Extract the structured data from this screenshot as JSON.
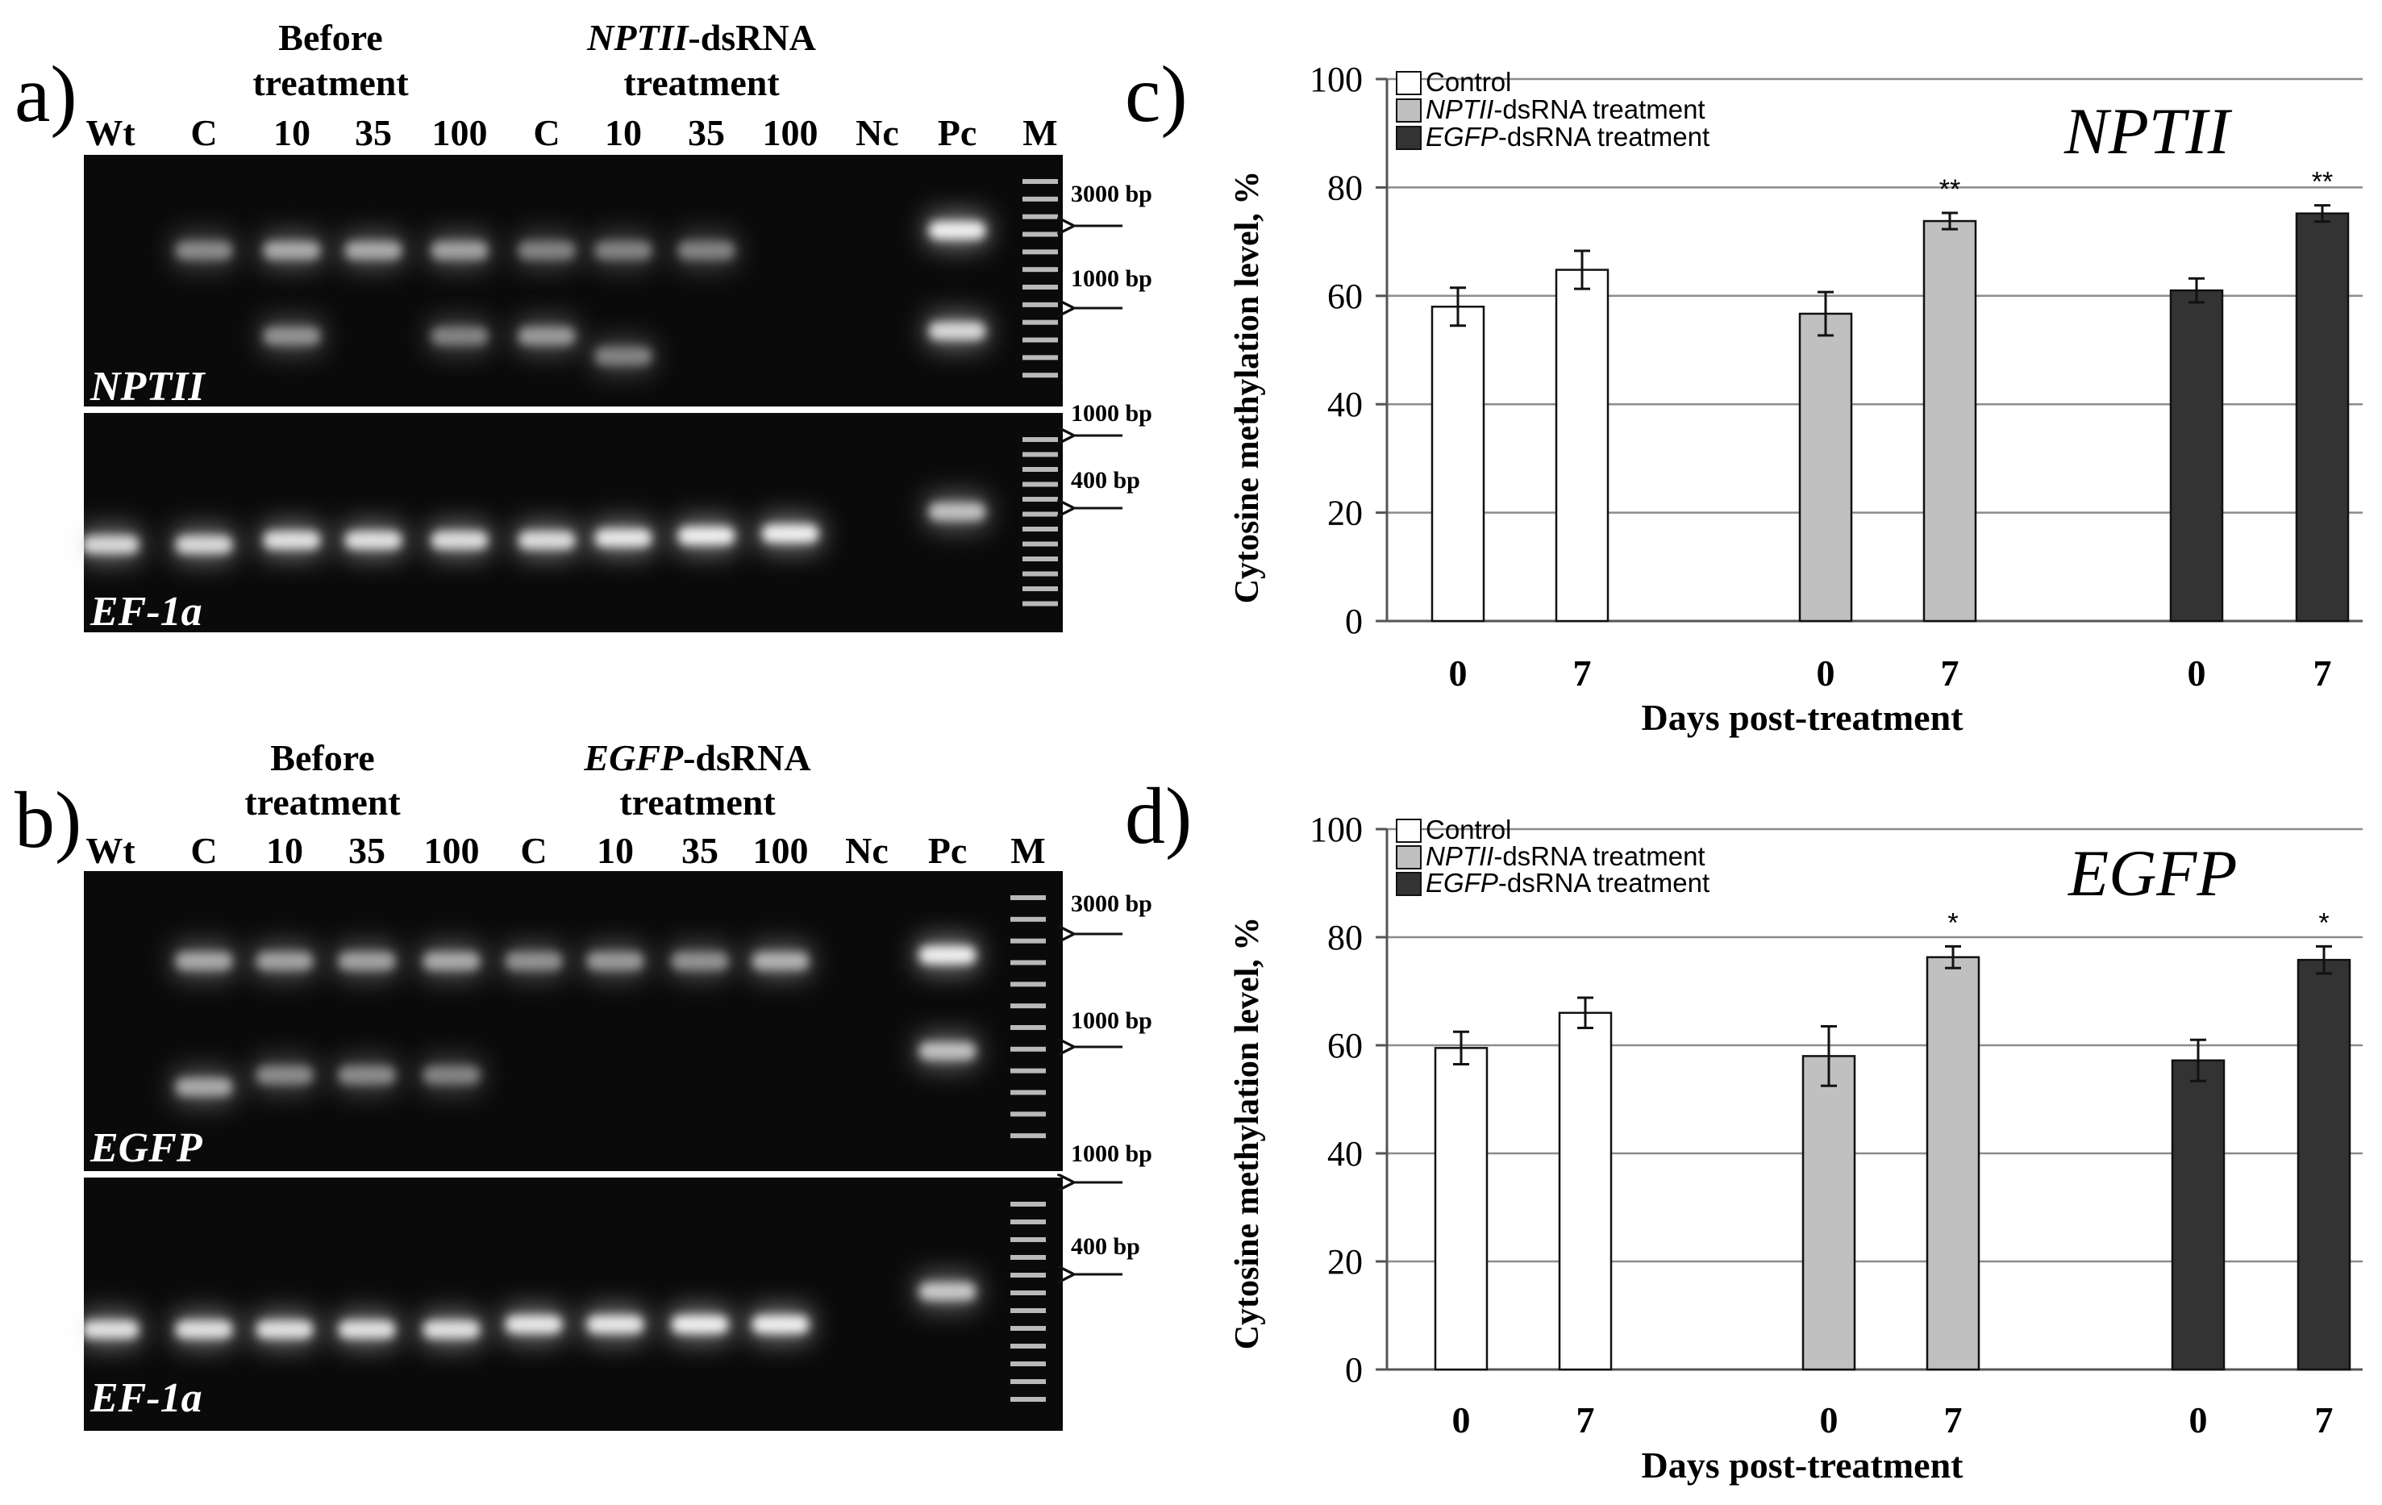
{
  "colors": {
    "gel_background": "#0a0a0a",
    "bar_control": "#ffffff",
    "bar_nptii": "#c0c0c0",
    "bar_egfp": "#333333",
    "gridline": "#8c8c8c"
  },
  "gels": [
    {
      "id": "a",
      "panel_label": "a)",
      "group1_title": [
        "Before",
        "treatment"
      ],
      "group2_title_italic": "NPTII",
      "group2_title_rest": "-dsRNA",
      "group2_title_line2": "treatment",
      "lane_labels": [
        "Wt",
        "C",
        "10",
        "35",
        "100",
        "C",
        "10",
        "35",
        "100",
        "Nc",
        "Pc",
        "M"
      ],
      "top_gel_label": "NPTII",
      "bottom_gel_label": "EF-1a",
      "marker_labels": [
        "3000 bp",
        "1000 bp",
        "1000 bp",
        "400 bp"
      ],
      "top_bands": [
        {
          "lane": 1,
          "pos": 0.38,
          "intensity": 0.35
        },
        {
          "lane": 2,
          "pos": 0.38,
          "intensity": 0.55
        },
        {
          "lane": 2,
          "pos": 0.72,
          "intensity": 0.4
        },
        {
          "lane": 3,
          "pos": 0.38,
          "intensity": 0.55
        },
        {
          "lane": 4,
          "pos": 0.38,
          "intensity": 0.5
        },
        {
          "lane": 4,
          "pos": 0.72,
          "intensity": 0.3
        },
        {
          "lane": 5,
          "pos": 0.38,
          "intensity": 0.3
        },
        {
          "lane": 5,
          "pos": 0.72,
          "intensity": 0.45
        },
        {
          "lane": 6,
          "pos": 0.38,
          "intensity": 0.3
        },
        {
          "lane": 6,
          "pos": 0.8,
          "intensity": 0.3
        },
        {
          "lane": 7,
          "pos": 0.38,
          "intensity": 0.3
        },
        {
          "lane": 10,
          "pos": 0.3,
          "intensity": 1.0
        },
        {
          "lane": 10,
          "pos": 0.7,
          "intensity": 0.85
        }
      ],
      "bottom_bands": [
        {
          "lane": 0,
          "pos": 0.6,
          "intensity": 0.85
        },
        {
          "lane": 1,
          "pos": 0.6,
          "intensity": 0.85
        },
        {
          "lane": 2,
          "pos": 0.58,
          "intensity": 0.9
        },
        {
          "lane": 3,
          "pos": 0.58,
          "intensity": 0.9
        },
        {
          "lane": 4,
          "pos": 0.58,
          "intensity": 0.88
        },
        {
          "lane": 5,
          "pos": 0.58,
          "intensity": 0.88
        },
        {
          "lane": 6,
          "pos": 0.57,
          "intensity": 0.95
        },
        {
          "lane": 7,
          "pos": 0.56,
          "intensity": 1.0
        },
        {
          "lane": 8,
          "pos": 0.55,
          "intensity": 1.0
        },
        {
          "lane": 10,
          "pos": 0.45,
          "intensity": 0.7
        }
      ]
    },
    {
      "id": "b",
      "panel_label": "b)",
      "group1_title": [
        "Before",
        "treatment"
      ],
      "group2_title_italic": "EGFP",
      "group2_title_rest": "-dsRNA",
      "group2_title_line2": "treatment",
      "lane_labels": [
        "Wt",
        "C",
        "10",
        "35",
        "100",
        "C",
        "10",
        "35",
        "100",
        "Nc",
        "Pc",
        "M"
      ],
      "top_gel_label": "EGFP",
      "bottom_gel_label": "EF-1a",
      "marker_labels": [
        "3000 bp",
        "1000 bp",
        "1000 bp",
        "400 bp"
      ],
      "top_bands": [
        {
          "lane": 1,
          "pos": 0.3,
          "intensity": 0.55
        },
        {
          "lane": 1,
          "pos": 0.72,
          "intensity": 0.55
        },
        {
          "lane": 2,
          "pos": 0.3,
          "intensity": 0.5
        },
        {
          "lane": 2,
          "pos": 0.68,
          "intensity": 0.35
        },
        {
          "lane": 3,
          "pos": 0.3,
          "intensity": 0.5
        },
        {
          "lane": 3,
          "pos": 0.68,
          "intensity": 0.35
        },
        {
          "lane": 4,
          "pos": 0.3,
          "intensity": 0.55
        },
        {
          "lane": 4,
          "pos": 0.68,
          "intensity": 0.3
        },
        {
          "lane": 5,
          "pos": 0.3,
          "intensity": 0.4
        },
        {
          "lane": 6,
          "pos": 0.3,
          "intensity": 0.45
        },
        {
          "lane": 7,
          "pos": 0.3,
          "intensity": 0.4
        },
        {
          "lane": 8,
          "pos": 0.3,
          "intensity": 0.6
        },
        {
          "lane": 10,
          "pos": 0.28,
          "intensity": 1.0
        },
        {
          "lane": 10,
          "pos": 0.6,
          "intensity": 0.7
        }
      ],
      "bottom_bands": [
        {
          "lane": 0,
          "pos": 0.6,
          "intensity": 0.9
        },
        {
          "lane": 1,
          "pos": 0.6,
          "intensity": 0.9
        },
        {
          "lane": 2,
          "pos": 0.6,
          "intensity": 0.9
        },
        {
          "lane": 3,
          "pos": 0.6,
          "intensity": 0.9
        },
        {
          "lane": 4,
          "pos": 0.6,
          "intensity": 0.9
        },
        {
          "lane": 5,
          "pos": 0.58,
          "intensity": 0.95
        },
        {
          "lane": 6,
          "pos": 0.58,
          "intensity": 0.95
        },
        {
          "lane": 7,
          "pos": 0.58,
          "intensity": 1.0
        },
        {
          "lane": 8,
          "pos": 0.58,
          "intensity": 1.0
        },
        {
          "lane": 10,
          "pos": 0.45,
          "intensity": 0.75
        }
      ]
    }
  ],
  "chart_data": [
    {
      "panel_label": "c)",
      "type": "bar",
      "title": "NPTII",
      "xlabel": "Days post-treatment",
      "ylabel": "Cytosine methylation level, %",
      "ylim": [
        0,
        100
      ],
      "yticks": [
        0,
        20,
        40,
        60,
        80,
        100
      ],
      "grid": true,
      "legend_position": "top-left",
      "categories": [
        "0",
        "7",
        "0",
        "7",
        "0",
        "7"
      ],
      "legend": [
        {
          "plain_before": "",
          "italic": "",
          "plain_after": "Control",
          "color": "#ffffff"
        },
        {
          "plain_before": "",
          "italic": "NPTII",
          "plain_after": "-dsRNA treatment",
          "color": "#c0c0c0"
        },
        {
          "plain_before": "",
          "italic": "EGFP",
          "plain_after": "-dsRNA treatment",
          "color": "#333333"
        }
      ],
      "bars": [
        {
          "x": "0",
          "group": 0,
          "value": 58,
          "error": 3.5,
          "sig": ""
        },
        {
          "x": "7",
          "group": 0,
          "value": 64.8,
          "error": 3.5,
          "sig": ""
        },
        {
          "x": "0",
          "group": 1,
          "value": 56.7,
          "error": 4,
          "sig": ""
        },
        {
          "x": "7",
          "group": 1,
          "value": 73.8,
          "error": 1.5,
          "sig": "**"
        },
        {
          "x": "0",
          "group": 2,
          "value": 61,
          "error": 2.2,
          "sig": ""
        },
        {
          "x": "7",
          "group": 2,
          "value": 75.2,
          "error": 1.5,
          "sig": "**"
        }
      ]
    },
    {
      "panel_label": "d)",
      "type": "bar",
      "title": "EGFP",
      "xlabel": "Days post-treatment",
      "ylabel": "Cytosine methylation level, %",
      "ylim": [
        0,
        100
      ],
      "yticks": [
        0,
        20,
        40,
        60,
        80,
        100
      ],
      "grid": true,
      "legend_position": "top-left",
      "categories": [
        "0",
        "7",
        "0",
        "7",
        "0",
        "7"
      ],
      "legend": [
        {
          "plain_before": "",
          "italic": "",
          "plain_after": "Control",
          "color": "#ffffff"
        },
        {
          "plain_before": "",
          "italic": "NPTII",
          "plain_after": "-dsRNA treatment",
          "color": "#c0c0c0"
        },
        {
          "plain_before": "",
          "italic": "EGFP",
          "plain_after": "-dsRNA treatment",
          "color": "#333333"
        }
      ],
      "bars": [
        {
          "x": "0",
          "group": 0,
          "value": 59.5,
          "error": 3,
          "sig": ""
        },
        {
          "x": "7",
          "group": 0,
          "value": 66,
          "error": 2.8,
          "sig": ""
        },
        {
          "x": "0",
          "group": 1,
          "value": 58,
          "error": 5.5,
          "sig": ""
        },
        {
          "x": "7",
          "group": 1,
          "value": 76.3,
          "error": 2,
          "sig": "*"
        },
        {
          "x": "0",
          "group": 2,
          "value": 57.2,
          "error": 3.8,
          "sig": ""
        },
        {
          "x": "7",
          "group": 2,
          "value": 75.8,
          "error": 2.5,
          "sig": "*"
        }
      ]
    }
  ]
}
